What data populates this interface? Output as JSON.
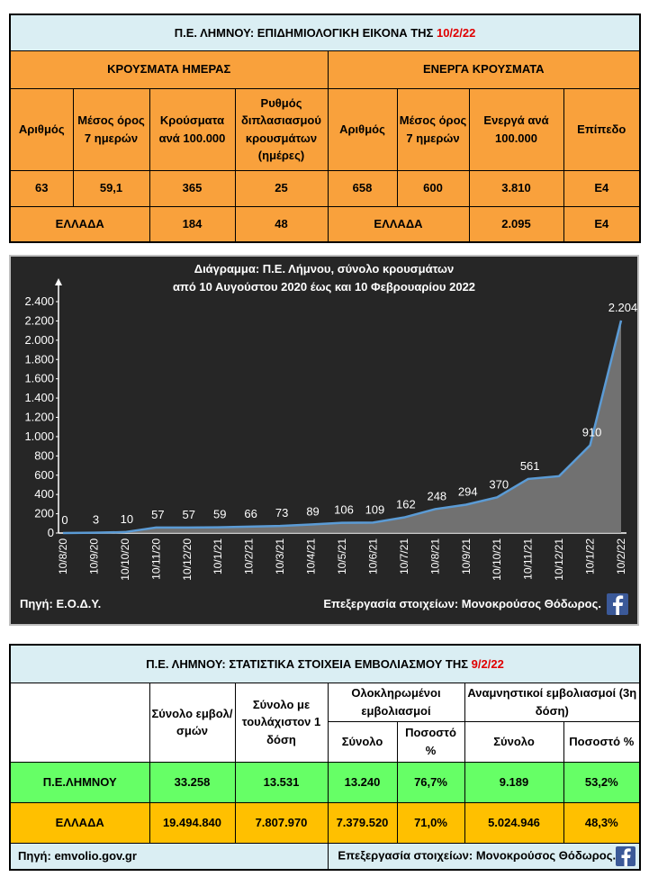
{
  "top_table": {
    "title": "Π.Ε. ΛΗΜΝΟΥ: ΕΠΙΔΗΜΙΟΛΟΓΙΚΗ ΕΙΚΟΝΑ ΤΗΣ",
    "date": "10/2/22",
    "sections": [
      "ΚΡΟΥΣΜΑΤΑ ΗΜΕΡΑΣ",
      "ΕΝΕΡΓΑ ΚΡΟΥΣΜΑΤΑ"
    ],
    "headers": [
      "Αριθμός",
      "Μέσος όρος 7 ημερών",
      "Κρούσματα ανά 100.000",
      "Ρυθμός διπλασιασμού κρουσμάτων (ημέρες)",
      "Αριθμός",
      "Μέσος όρος 7 ημερών",
      "Ενεργά ανά 100.000",
      "Επίπεδο"
    ],
    "row": [
      "63",
      "59,1",
      "365",
      "25",
      "658",
      "600",
      "3.810",
      "E4"
    ],
    "greece_row": [
      "ΕΛΛΑΔΑ",
      "184",
      "48",
      "ΕΛΛΑΔΑ",
      "2.095",
      "E4"
    ]
  },
  "chart_data": {
    "type": "area",
    "title": [
      "Διάγραμμα:  Π.Ε. Λήμνου, σύνολο κρουσμάτων",
      "από 10 Αυγούστου 2020 έως και 10 Φεβρουαρίου 2022"
    ],
    "categories": [
      "10/8/20",
      "10/9/20",
      "10/10/20",
      "10/11/20",
      "10/12/20",
      "10/1/21",
      "10/2/21",
      "10/3/21",
      "10/4/21",
      "10/5/21",
      "10/6/21",
      "10/7/21",
      "10/8/21",
      "10/9/21",
      "10/10/21",
      "10/11/21",
      "10/12/21",
      "10/1/22",
      "10/2/22"
    ],
    "values": [
      0,
      3,
      10,
      57,
      57,
      59,
      66,
      73,
      89,
      106,
      109,
      162,
      248,
      294,
      370,
      561,
      590,
      910,
      2204
    ],
    "value_labels": [
      "0",
      "3",
      "10",
      "57",
      "57",
      "59",
      "66",
      "73",
      "89",
      "106",
      "109",
      "162",
      "248",
      "294",
      "370",
      "561",
      null,
      "910",
      "2.204"
    ],
    "color": "#5b9bd5",
    "fill": "#7f7f7f",
    "ylim": [
      0,
      2400
    ],
    "yticks": [
      0,
      200,
      400,
      600,
      800,
      {
        "value": 1000,
        "label": "1.000"
      },
      {
        "value": 1200,
        "label": "1.200"
      },
      {
        "value": 1400,
        "label": "1.400"
      },
      {
        "value": 1600,
        "label": "1.600"
      },
      {
        "value": 1800,
        "label": "1.800"
      },
      {
        "value": 2000,
        "label": "2.000"
      },
      {
        "value": 2200,
        "label": "2.200"
      },
      {
        "value": 2400,
        "label": "2.400"
      }
    ],
    "source": "Πηγή: Ε.Ο.Δ.Υ.",
    "credit": "Επεξεργασία  στοιχείων: Μονοκρούσος Θόδωρος."
  },
  "vaccine_table": {
    "title": "Π.Ε. ΛΗΜΝΟΥ: ΣΤΑΤΙΣΤΙΚΑ ΣΤΟΙΧΕΙΑ ΕΜΒΟΛΙΑΣΜΟΥ ΤΗΣ",
    "date": "9/2/22",
    "headers": [
      "Σύνολο εμβολ/σμών",
      "Σύνολο με τουλάχιστον 1 δόση",
      "Ολοκληρωμένοι εμβολιασμοί",
      "Αναμνηστικοί εμβολιασμοί (3η δόση)"
    ],
    "subheaders": [
      "Σύνολο",
      "Ποσοστό %",
      "Σύνολο",
      "Ποσοστό %"
    ],
    "rows": [
      [
        "Π.Ε.ΛΗΜΝΟΥ",
        "33.258",
        "13.531",
        "13.240",
        "76,7%",
        "9.189",
        "53,2%"
      ],
      [
        "ΕΛΛΑΔΑ",
        "19.494.840",
        "7.807.970",
        "7.379.520",
        "71,0%",
        "5.024.946",
        "48,3%"
      ]
    ],
    "source": "Πηγή: emvolio.gov.gr",
    "credit": "Επεξεργασία στοιχείων: Μονοκρούσος Θόδωρος."
  }
}
